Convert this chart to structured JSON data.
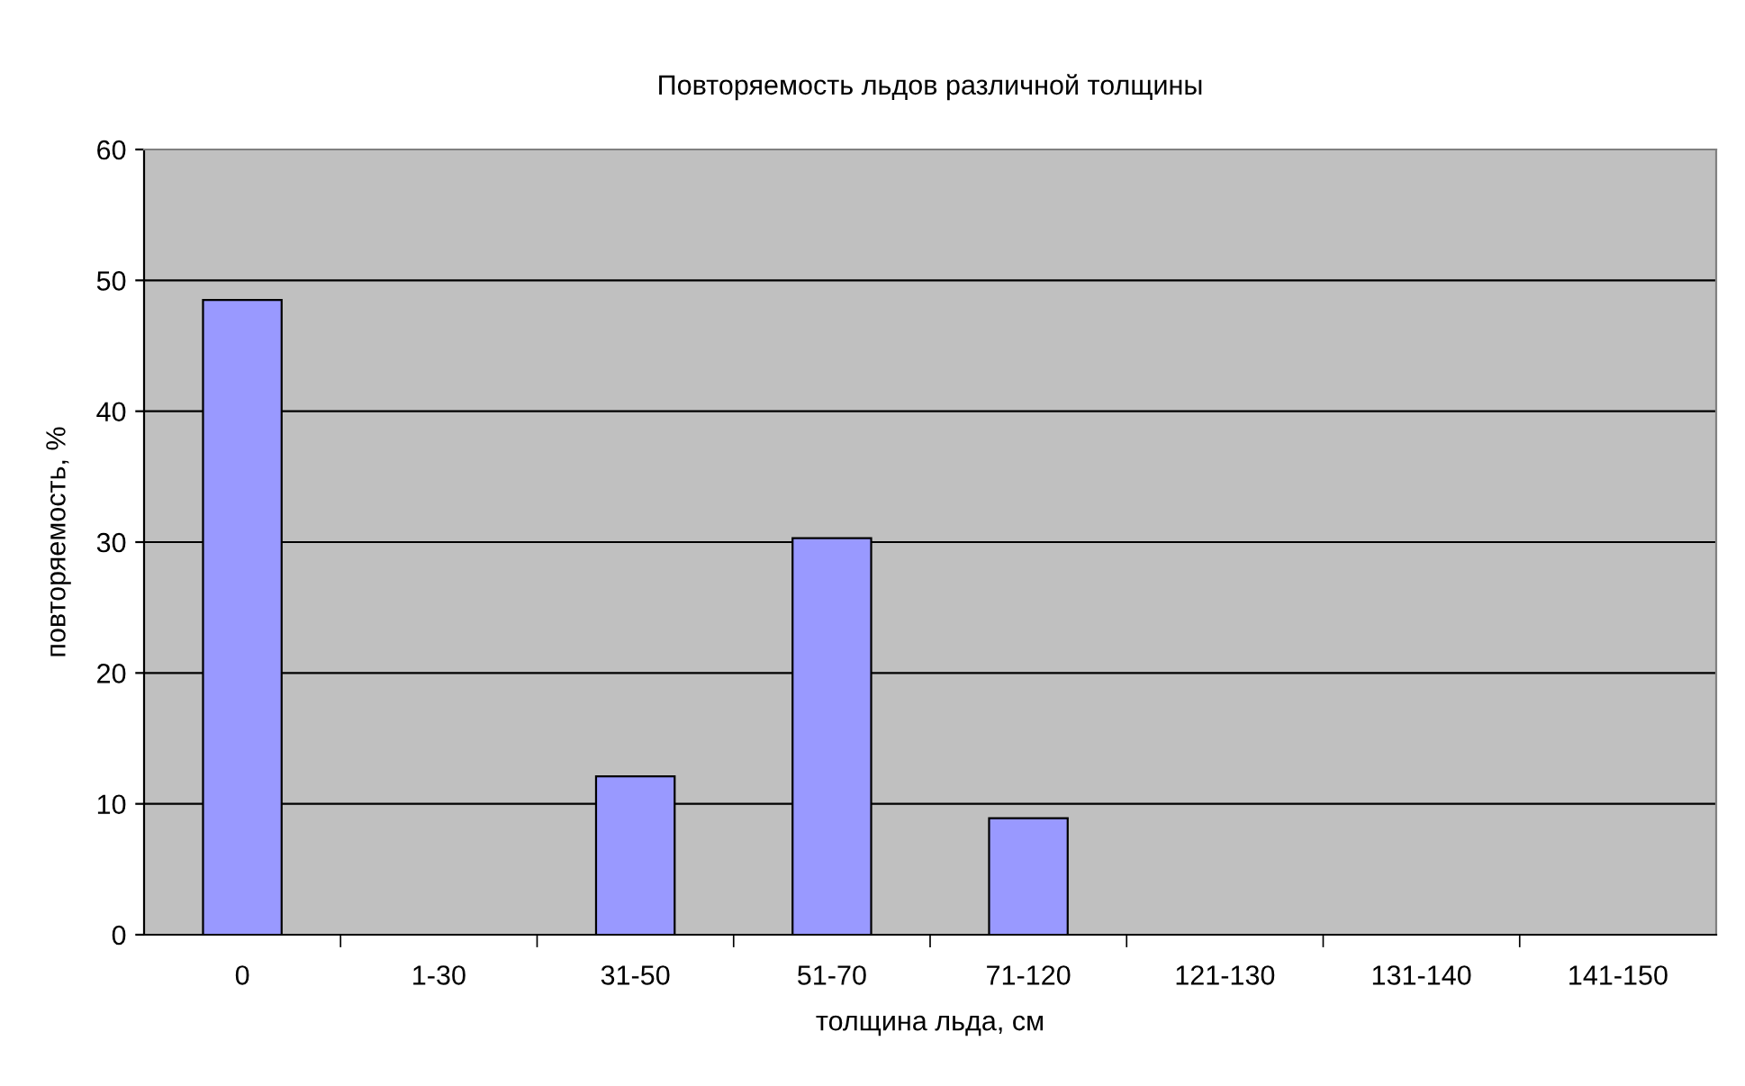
{
  "chart_data": {
    "type": "bar",
    "title": "Повторяемость льдов различной толщины",
    "xlabel": "толщина льда, см",
    "ylabel": "повторяемость, %",
    "categories": [
      "0",
      "1-30",
      "31-50",
      "51-70",
      "71-120",
      "121-130",
      "131-140",
      "141-150"
    ],
    "values": [
      48.5,
      null,
      12.1,
      30.3,
      8.9,
      null,
      null,
      null
    ],
    "color": "#9999ff",
    "ylim": [
      0,
      60
    ],
    "yticks": [
      0,
      10,
      20,
      30,
      40,
      50,
      60
    ],
    "grid": "y"
  }
}
